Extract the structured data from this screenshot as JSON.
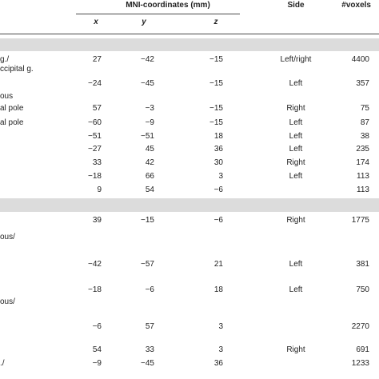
{
  "header": {
    "mni_label": "MNI-coordinates (mm)",
    "side_label": "Side",
    "voxels_label": "#voxels",
    "x_label": "x",
    "y_label": "y",
    "z_label": "z"
  },
  "labels": {
    "l1": "g./",
    "l2": "ccipital g.",
    "l3": "ous",
    "l4": "al pole",
    "l5": "al pole",
    "l6": "ous/",
    "l7": "ous/",
    "l8": "./"
  },
  "rows": [
    {
      "x": "27",
      "y": "−42",
      "z": "−15",
      "side": "Left/right",
      "voxels": "4400"
    },
    {
      "x": "−24",
      "y": "−45",
      "z": "−15",
      "side": "Left",
      "voxels": "357"
    },
    {
      "x": "57",
      "y": "−3",
      "z": "−15",
      "side": "Right",
      "voxels": "75"
    },
    {
      "x": "−60",
      "y": "−9",
      "z": "−15",
      "side": "Left",
      "voxels": "87"
    },
    {
      "x": "−51",
      "y": "−51",
      "z": "18",
      "side": "Left",
      "voxels": "38"
    },
    {
      "x": "−27",
      "y": "45",
      "z": "36",
      "side": "Left",
      "voxels": "235"
    },
    {
      "x": "33",
      "y": "42",
      "z": "30",
      "side": "Right",
      "voxels": "174"
    },
    {
      "x": "−18",
      "y": "66",
      "z": "3",
      "side": "Left",
      "voxels": "113"
    },
    {
      "x": "9",
      "y": "54",
      "z": "−6",
      "side": "",
      "voxels": "113"
    },
    {
      "x": "39",
      "y": "−15",
      "z": "−6",
      "side": "Right",
      "voxels": "1775"
    },
    {
      "x": "−42",
      "y": "−57",
      "z": "21",
      "side": "Left",
      "voxels": "381"
    },
    {
      "x": "−18",
      "y": "−6",
      "z": "18",
      "side": "Left",
      "voxels": "750"
    },
    {
      "x": "−6",
      "y": "57",
      "z": "3",
      "side": "",
      "voxels": "2270"
    },
    {
      "x": "54",
      "y": "33",
      "z": "3",
      "side": "Right",
      "voxels": "691"
    },
    {
      "x": "−9",
      "y": "−45",
      "z": "36",
      "side": "",
      "voxels": "1233"
    }
  ],
  "colors": {
    "band": "#dcdcdc",
    "rule": "#4a4a4a",
    "text": "#222222"
  }
}
